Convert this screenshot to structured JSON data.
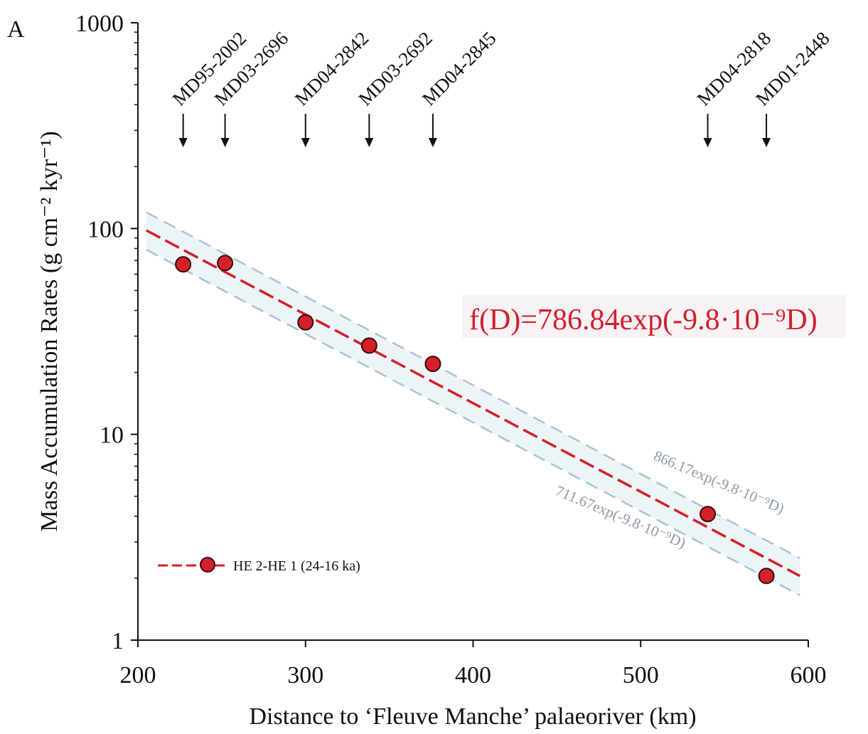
{
  "panel_label": "A",
  "chart_data": {
    "type": "scatter",
    "xlabel": "Distance to ‘Fleuve Manche’ palaeoriver (km)",
    "ylabel": "Mass Accumulation Rates (g cm⁻² kyr⁻¹)",
    "xlim": [
      200,
      600
    ],
    "ylim": [
      1,
      1000
    ],
    "yscale": "log",
    "x_ticks": [
      "200",
      "300",
      "400",
      "500",
      "600"
    ],
    "y_ticks": [
      "1",
      "10",
      "100",
      "1000"
    ],
    "grid": false,
    "legend_position": "bottom-left",
    "series": [
      {
        "name": "HE 2-HE 1 (24-16 ka)",
        "color": "#d4202a",
        "points": [
          {
            "x": 227,
            "y": 67
          },
          {
            "x": 252,
            "y": 68
          },
          {
            "x": 300,
            "y": 35
          },
          {
            "x": 338,
            "y": 27
          },
          {
            "x": 376,
            "y": 22
          },
          {
            "x": 540,
            "y": 4.1
          },
          {
            "x": 575,
            "y": 2.05
          }
        ]
      }
    ],
    "fit": {
      "equation": "f(D)=786.84exp(-9.8·10⁻⁹D)",
      "x_range": [
        205,
        595
      ],
      "y_start": 98,
      "y_end": 2.05,
      "color": "#d4202a"
    },
    "bands": [
      {
        "label": "866.17exp(-9.8·10⁻⁹D)",
        "y_start": 120,
        "y_end": 2.5,
        "color": "#a9c3d1"
      },
      {
        "label": "711.67exp(-9.8·10⁻⁹D)",
        "y_start": 79,
        "y_end": 1.65,
        "color": "#a9c3d1"
      }
    ],
    "cores": [
      {
        "name": "MD95-2002",
        "x": 227
      },
      {
        "name": "MD03-2696",
        "x": 252
      },
      {
        "name": "MD04-2842",
        "x": 300
      },
      {
        "name": "MD03-2692",
        "x": 338
      },
      {
        "name": "MD04-2845",
        "x": 376
      },
      {
        "name": "MD04-2818",
        "x": 540
      },
      {
        "name": "MD01-2448",
        "x": 575
      }
    ]
  }
}
